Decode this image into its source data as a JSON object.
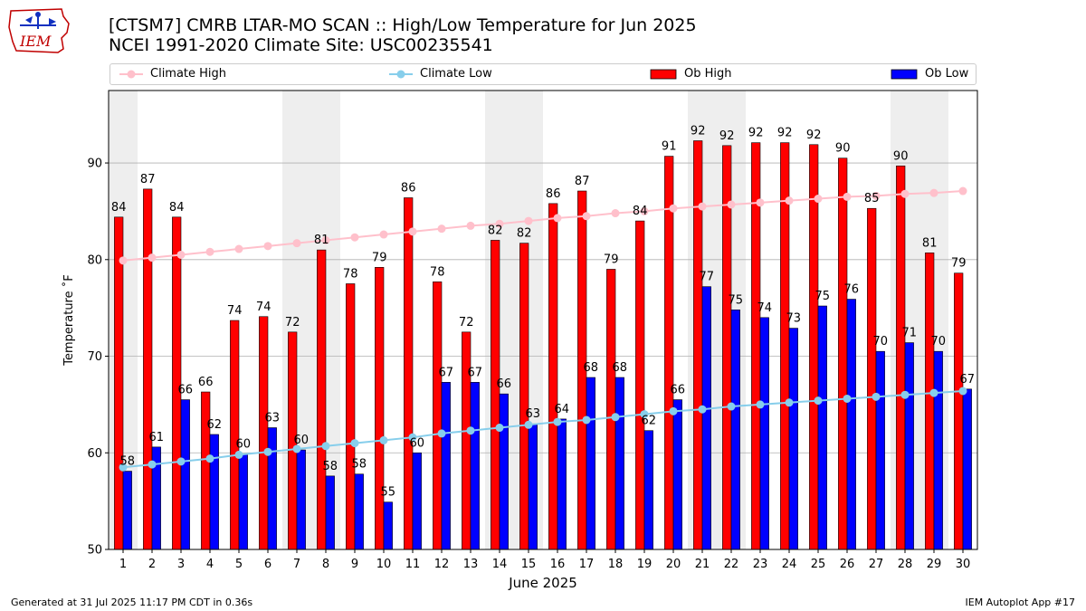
{
  "header": {
    "title_line1": "[CTSM7] CMRB LTAR-MO SCAN :: High/Low Temperature for Jun 2025",
    "title_line2": "NCEI 1991-2020 Climate Site: USC00235541",
    "logo_text": "IEM"
  },
  "footer": {
    "generated": "Generated at 31 Jul 2025 11:17 PM CDT in 0.36s",
    "app": "IEM Autoplot App #17"
  },
  "colors": {
    "climate_high": "#ffc0cb",
    "climate_low": "#87ceeb",
    "ob_high": "#ff0000",
    "ob_low": "#0000ff",
    "weekend_shade": "#eeeeee",
    "grid": "#b0b0b0"
  },
  "chart_data": {
    "type": "bar",
    "xlabel": "June 2025",
    "ylabel": "Temperature ˚F",
    "ylim": [
      50,
      97.5
    ],
    "xlim": [
      0.5,
      30.5
    ],
    "yticks": [
      50,
      60,
      70,
      80,
      90
    ],
    "grid": "horizontal",
    "legend_position": "top",
    "categories": [
      1,
      2,
      3,
      4,
      5,
      6,
      7,
      8,
      9,
      10,
      11,
      12,
      13,
      14,
      15,
      16,
      17,
      18,
      19,
      20,
      21,
      22,
      23,
      24,
      25,
      26,
      27,
      28,
      29,
      30
    ],
    "shaded_days": [
      1,
      7,
      8,
      14,
      15,
      21,
      22,
      28,
      29
    ],
    "series": [
      {
        "name": "Ob High",
        "kind": "bar",
        "values": [
          84.4,
          87.3,
          84.4,
          66.3,
          73.7,
          74.1,
          72.5,
          81.0,
          77.5,
          79.2,
          86.4,
          77.7,
          72.5,
          82.0,
          81.7,
          85.8,
          87.1,
          79.0,
          84.0,
          90.7,
          92.3,
          91.8,
          92.1,
          92.1,
          91.9,
          90.5,
          85.3,
          89.7,
          80.7,
          78.6
        ]
      },
      {
        "name": "Ob Low",
        "kind": "bar",
        "values": [
          58.1,
          60.6,
          65.5,
          61.9,
          59.9,
          62.6,
          60.3,
          57.6,
          57.8,
          54.9,
          60.0,
          67.3,
          67.3,
          66.1,
          63.0,
          63.5,
          67.8,
          67.8,
          62.3,
          65.5,
          77.2,
          74.8,
          74.0,
          72.9,
          75.2,
          75.9,
          70.5,
          71.4,
          70.5,
          66.6
        ]
      },
      {
        "name": "Climate High",
        "kind": "line",
        "values": [
          79.9,
          80.2,
          80.5,
          80.8,
          81.1,
          81.4,
          81.7,
          82.0,
          82.3,
          82.6,
          82.9,
          83.2,
          83.5,
          83.7,
          84.0,
          84.3,
          84.5,
          84.8,
          85.0,
          85.3,
          85.5,
          85.7,
          85.9,
          86.1,
          86.3,
          86.5,
          86.6,
          86.8,
          86.9,
          87.1
        ]
      },
      {
        "name": "Climate Low",
        "kind": "line",
        "values": [
          58.5,
          58.8,
          59.1,
          59.4,
          59.8,
          60.1,
          60.4,
          60.7,
          61.0,
          61.3,
          61.6,
          62.0,
          62.3,
          62.6,
          62.9,
          63.2,
          63.4,
          63.7,
          64.0,
          64.3,
          64.5,
          64.8,
          65.0,
          65.2,
          65.4,
          65.6,
          65.8,
          66.0,
          66.2,
          66.4
        ]
      }
    ],
    "high_labels": [
      "84",
      "87",
      "84",
      "66",
      "74",
      "74",
      "72",
      "81",
      "78",
      "79",
      "86",
      "78",
      "72",
      "82",
      "82",
      "86",
      "87",
      "79",
      "84",
      "91",
      "92",
      "92",
      "92",
      "92",
      "92",
      "90",
      "85",
      "90",
      "81",
      "79"
    ],
    "low_labels": [
      "58",
      "61",
      "66",
      "62",
      "60",
      "63",
      "60",
      "58",
      "58",
      "55",
      "60",
      "67",
      "67",
      "66",
      "63",
      "64",
      "68",
      "68",
      "62",
      "66",
      "77",
      "75",
      "74",
      "73",
      "75",
      "76",
      "70",
      "71",
      "70",
      "67"
    ]
  }
}
